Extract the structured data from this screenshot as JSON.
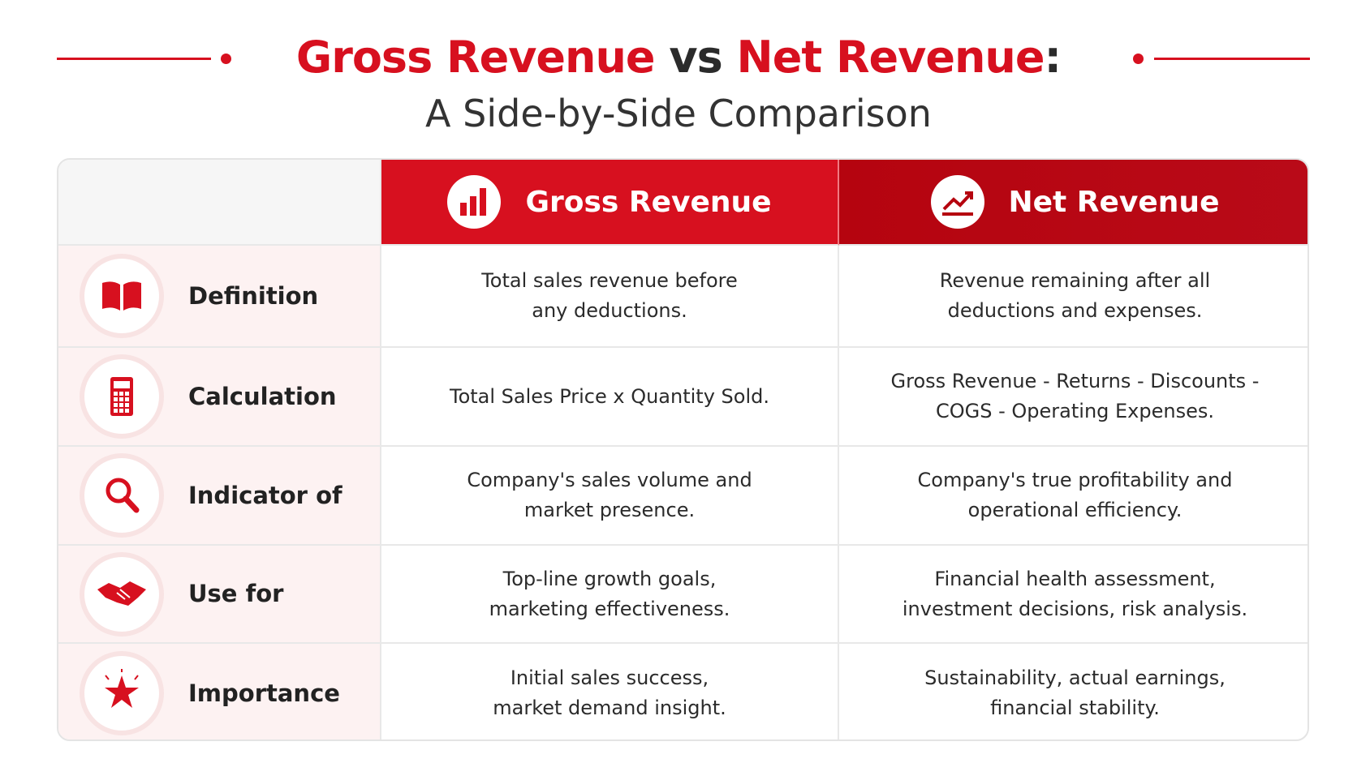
{
  "header": {
    "title": [
      "Gross Revenue",
      "vs",
      "Net Revenue",
      ":"
    ],
    "subtitle": "A Side-by-Side Comparison"
  },
  "table": {
    "columns": [
      "Gross Revenue",
      "Net Revenue"
    ],
    "rows": [
      {
        "label": "Definition",
        "gross": "Total sales revenue before any deductions.",
        "net": "Revenue remaining after all deductions and expenses."
      },
      {
        "label": "Calculation",
        "gross": "Total Sales Price x Quantity Sold.",
        "net": "Gross Revenue - Returns - Discounts - COGS - Operating Expenses."
      },
      {
        "label": "Indicator of",
        "gross": "Company's sales volume and market presence.",
        "net": "Company's true profitability and operational efficiency."
      },
      {
        "label": "Use for",
        "gross": "Top-line growth goals, marketing effectiveness.",
        "net": "Financial health assessment, investment decisions, risk analysis."
      },
      {
        "label": "Importance",
        "gross": "Initial sales success, market demand insight.",
        "net": "Sustainability, actual earnings, financial stability."
      }
    ]
  }
}
